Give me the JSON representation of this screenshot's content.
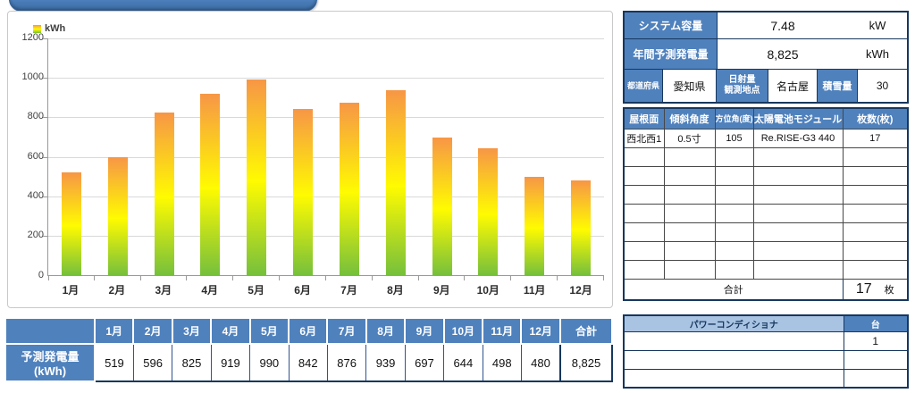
{
  "colors": {
    "header_blue": "#4f81bd",
    "border_navy": "#17375e",
    "pill_blue": "#4e82be",
    "pcs_header_light_blue": "#a9c3e3",
    "bar_top_orange": "#f79646",
    "bar_mid_yellow": "#fffb00",
    "bar_bottom_green": "#76c03c"
  },
  "chart_data": {
    "type": "bar",
    "title": "",
    "legend_label": "kWh",
    "legend_position": "top-left",
    "categories": [
      "1月",
      "2月",
      "3月",
      "4月",
      "5月",
      "6月",
      "7月",
      "8月",
      "9月",
      "10月",
      "11月",
      "12月"
    ],
    "values": [
      519,
      596,
      825,
      919,
      990,
      842,
      876,
      939,
      697,
      644,
      498,
      480
    ],
    "xlabel": "",
    "ylabel": "",
    "ylim": [
      0,
      1200
    ],
    "yticks": [
      0,
      200,
      400,
      600,
      800,
      1000,
      1200
    ],
    "grid": true,
    "bar_gradient": [
      "#f79646",
      "#fffb00",
      "#76c03c"
    ]
  },
  "summary_table": {
    "rows": [
      {
        "label": "システム容量",
        "value": "7.48",
        "unit": "kW"
      },
      {
        "label": "年間予測発電量",
        "value": "8,825",
        "unit": "kWh"
      }
    ],
    "pref_label": "都道府県",
    "pref_value": "愛知県",
    "station_label": "日射量\n観測地点",
    "station_value": "名古屋",
    "snow_label": "積雪量",
    "snow_value": "30"
  },
  "roof_table": {
    "headers": [
      "屋根面",
      "傾斜角度",
      "方位角(度)",
      "太陽電池モジュール",
      "枚数(枚)"
    ],
    "rows": [
      {
        "surface": "西北西1",
        "slope": "0.5寸",
        "azimuth": "105",
        "module": "Re.RISE-G3 440",
        "panels": "17"
      }
    ],
    "total_label": "合計",
    "total_value": "17",
    "total_unit": "枚"
  },
  "pcs_table": {
    "header": "パワーコンディショナ",
    "unit_header": "台",
    "rows": [
      {
        "name": "",
        "count": "1"
      },
      {
        "name": "",
        "count": ""
      },
      {
        "name": "",
        "count": ""
      }
    ]
  },
  "monthly_table": {
    "row_label": "予測発電量(kWh)",
    "months": [
      "1月",
      "2月",
      "3月",
      "4月",
      "5月",
      "6月",
      "7月",
      "8月",
      "9月",
      "10月",
      "11月",
      "12月"
    ],
    "total_header": "合計",
    "values": [
      "519",
      "596",
      "825",
      "919",
      "990",
      "842",
      "876",
      "939",
      "697",
      "644",
      "498",
      "480"
    ],
    "total_value": "8,825"
  }
}
